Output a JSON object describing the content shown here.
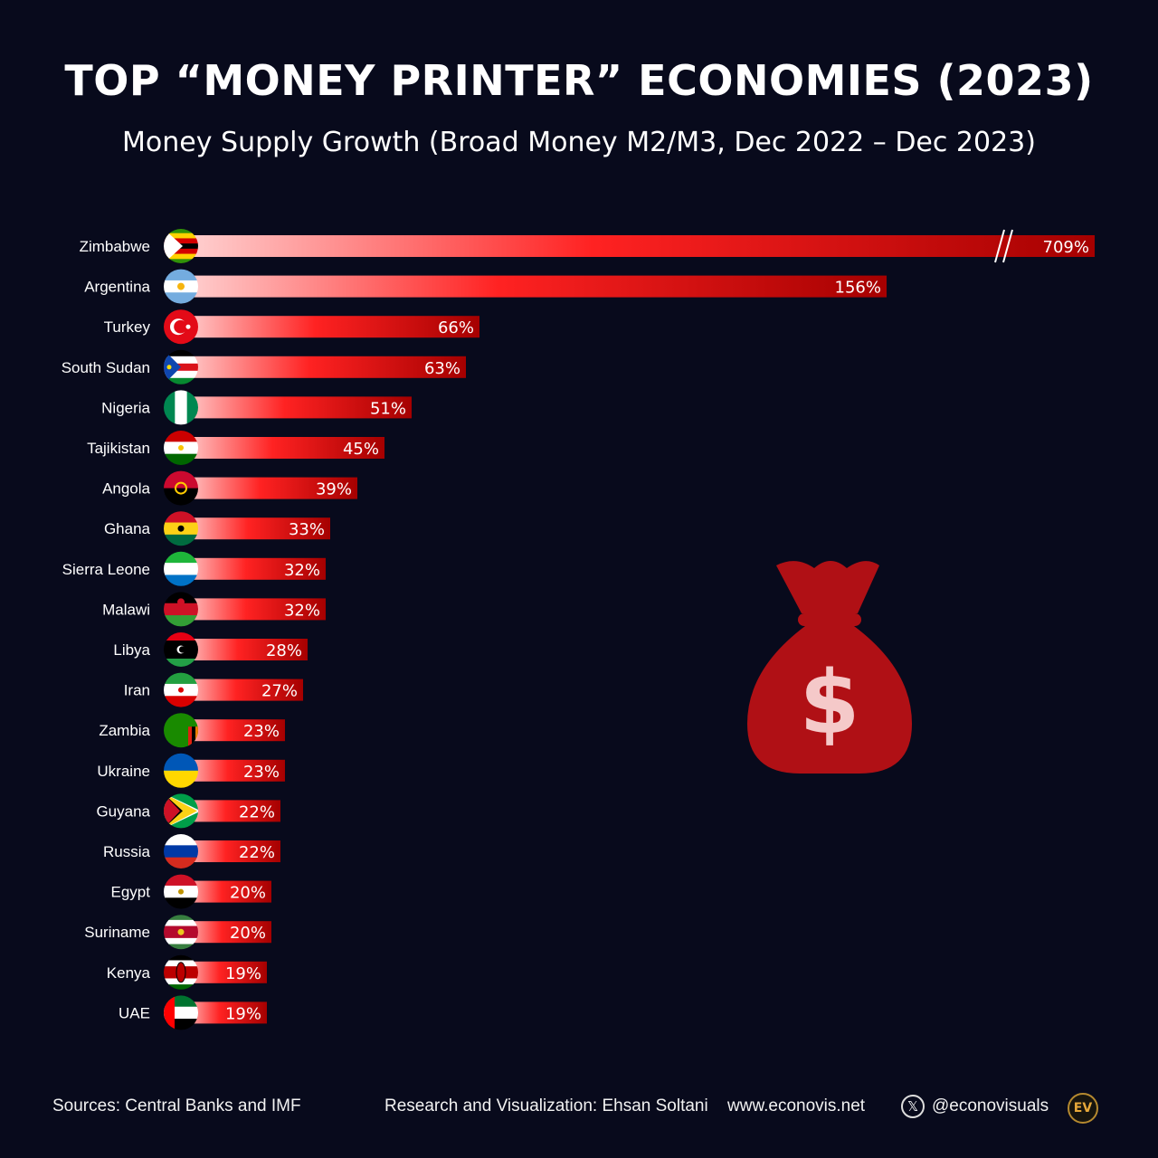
{
  "header": {
    "title": "TOP “MONEY PRINTER” ECONOMIES (2023)",
    "subtitle": "Money Supply Growth (Broad Money M2/M3, Dec 2022 – Dec 2023)"
  },
  "colors": {
    "background": "#080A1C",
    "bar_start": "#ffd3d3",
    "bar_mid": "#ff2222",
    "bar_end": "#a50000",
    "money_bag": "#b01015",
    "dollar_sign": "#f5c9c9"
  },
  "decoration": {
    "money_bag_icon": "money-bag-icon",
    "dollar_symbol": "$"
  },
  "chart_data": {
    "type": "bar",
    "orientation": "horizontal",
    "title": "TOP “MONEY PRINTER” ECONOMIES (2023)",
    "subtitle": "Money Supply Growth (Broad Money M2/M3, Dec 2022 – Dec 2023)",
    "unit": "%",
    "axis_break": {
      "category": "Zimbabwe",
      "note": "bar truncated with break marks"
    },
    "categories": [
      "Zimbabwe",
      "Argentina",
      "Turkey",
      "South Sudan",
      "Nigeria",
      "Tajikistan",
      "Angola",
      "Ghana",
      "Sierra Leone",
      "Malawi",
      "Libya",
      "Iran",
      "Zambia",
      "Ukraine",
      "Guyana",
      "Russia",
      "Egypt",
      "Suriname",
      "Kenya",
      "UAE"
    ],
    "values": [
      709,
      156,
      66,
      63,
      51,
      45,
      39,
      33,
      32,
      32,
      28,
      27,
      23,
      23,
      22,
      22,
      20,
      20,
      19,
      19
    ],
    "labels": [
      "709%",
      "156%",
      "66%",
      "63%",
      "51%",
      "45%",
      "39%",
      "33%",
      "32%",
      "32%",
      "28%",
      "27%",
      "23%",
      "23%",
      "22%",
      "22%",
      "20%",
      "20%",
      "19%",
      "19%"
    ],
    "flag_icons": [
      "zimbabwe-flag-icon",
      "argentina-flag-icon",
      "turkey-flag-icon",
      "south-sudan-flag-icon",
      "nigeria-flag-icon",
      "tajikistan-flag-icon",
      "angola-flag-icon",
      "ghana-flag-icon",
      "sierra-leone-flag-icon",
      "malawi-flag-icon",
      "libya-flag-icon",
      "iran-flag-icon",
      "zambia-flag-icon",
      "ukraine-flag-icon",
      "guyana-flag-icon",
      "russia-flag-icon",
      "egypt-flag-icon",
      "suriname-flag-icon",
      "kenya-flag-icon",
      "uae-flag-icon"
    ]
  },
  "footer": {
    "sources": "Sources: Central Banks and IMF",
    "credit": "Research and Visualization: Ehsan Soltani",
    "website": "www.econovis.net",
    "x_icon": "x-logo-icon",
    "x_glyph": "𝕏",
    "handle": "@econovisuals",
    "logo_text": "EV"
  }
}
